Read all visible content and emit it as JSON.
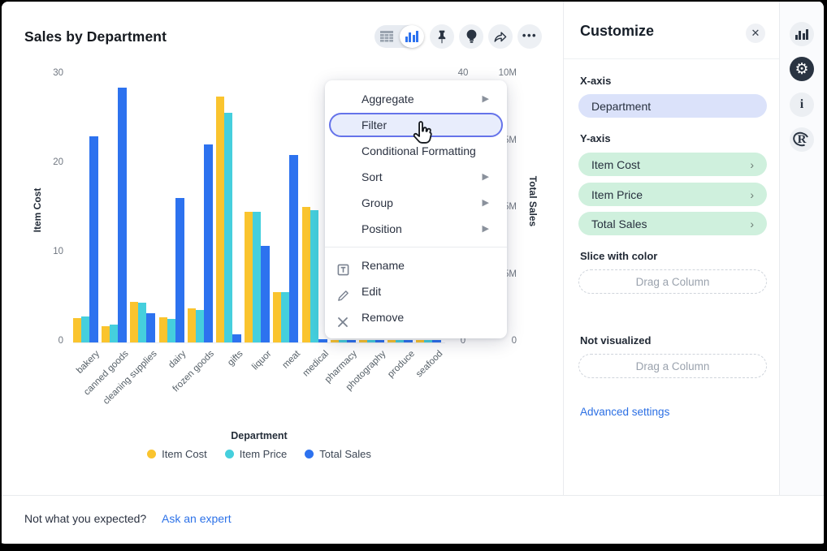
{
  "header": {
    "title": "Sales by Department"
  },
  "toolbar": {
    "view_toggle": {
      "options": [
        "table-view",
        "chart-view"
      ],
      "selected": "chart-view"
    },
    "buttons": [
      "pin",
      "insights",
      "share",
      "more"
    ]
  },
  "chart_data": {
    "type": "bar",
    "title": "Sales by Department",
    "categories": [
      "bakery",
      "canned goods",
      "cleaning supplies",
      "dairy",
      "frozen goods",
      "gifts",
      "liquor",
      "meat",
      "medical",
      "pharmacy",
      "photography",
      "produce",
      "seafood"
    ],
    "series": [
      {
        "name": "Item Cost",
        "color": "#fac42e",
        "axis": "left",
        "axis_max": 30,
        "values": [
          2.7,
          1.8,
          4.5,
          2.8,
          3.8,
          27.5,
          14.6,
          5.6,
          15.2,
          0.3,
          0.3,
          0.3,
          0.3
        ]
      },
      {
        "name": "Item Price",
        "color": "#45cfdd",
        "axis": "right-inner",
        "axis_max": 40,
        "values": [
          3.9,
          2.7,
          5.9,
          3.5,
          4.9,
          34.3,
          19.5,
          7.5,
          19.7,
          0.4,
          0.4,
          0.4,
          0.4
        ]
      },
      {
        "name": "Total Sales",
        "color": "#2d72ef",
        "axis": "right-outer",
        "axis_max": 10,
        "unit": "M",
        "values": [
          7.7,
          9.5,
          1.1,
          5.4,
          7.4,
          0.3,
          3.6,
          7.0,
          0.12,
          0.08,
          0.08,
          0.08,
          0.08
        ]
      }
    ],
    "xlabel": "Department",
    "left_axis": {
      "label": "Item Cost",
      "ticks": [
        0,
        10,
        20,
        30
      ]
    },
    "right_axis_inner": {
      "label": "",
      "ticks": [
        0,
        10,
        20,
        30,
        40
      ]
    },
    "right_axis_outer": {
      "label": "Total Sales",
      "ticks": [
        "0",
        "2.5M",
        "5M",
        "7.5M",
        "10M"
      ],
      "tick_values": [
        0,
        2.5,
        5,
        7.5,
        10
      ]
    },
    "legend_position": "bottom",
    "grid": false
  },
  "menu": {
    "items": [
      {
        "label": "Aggregate",
        "submenu": true
      },
      {
        "label": "Filter",
        "highlighted": true
      },
      {
        "label": "Conditional Formatting"
      },
      {
        "label": "Sort",
        "submenu": true
      },
      {
        "label": "Group",
        "submenu": true
      },
      {
        "label": "Position",
        "submenu": true
      },
      {
        "label": "Rename",
        "icon": "rename-icon"
      },
      {
        "label": "Edit",
        "icon": "pencil-icon"
      },
      {
        "label": "Remove",
        "icon": "x-icon"
      }
    ]
  },
  "customize": {
    "title": "Customize",
    "x_axis": {
      "label": "X-axis",
      "value": "Department"
    },
    "y_axis": {
      "label": "Y-axis",
      "items": [
        {
          "label": "Item Cost"
        },
        {
          "label": "Item Price"
        },
        {
          "label": "Total Sales"
        }
      ]
    },
    "slice": {
      "label": "Slice with color",
      "placeholder": "Drag a Column"
    },
    "not_visualized": {
      "label": "Not visualized",
      "placeholder": "Drag a Column"
    },
    "advanced_settings_label": "Advanced settings"
  },
  "rail": {
    "icons": [
      "chart-icon",
      "gear-icon",
      "info-icon",
      "r-logo-icon"
    ],
    "active": "gear-icon"
  },
  "footer": {
    "question": "Not what you expected?",
    "link_label": "Ask an expert"
  },
  "colors": {
    "accent_blue": "#2d72ef",
    "teal": "#45cfdd",
    "yellow": "#fac42e",
    "menu_highlight_border": "#6573ea",
    "pill_x": "#dbe2fa",
    "pill_y": "#cff0dd",
    "link": "#2b6fe4"
  }
}
